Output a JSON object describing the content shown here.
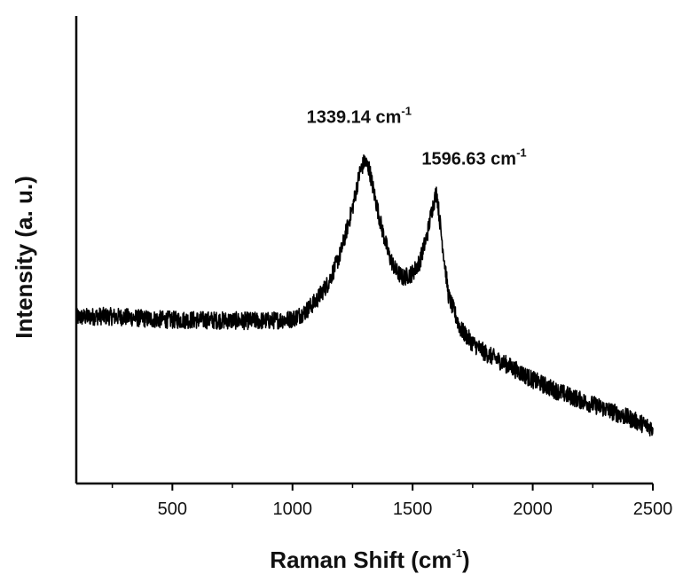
{
  "chart_data": {
    "type": "line",
    "title": "",
    "xlabel": "Raman Shift (cm",
    "xlabel_sup": "-1",
    "xlabel_end": ")",
    "ylabel": "Intensity (a. u.)",
    "xlim": [
      100,
      2500
    ],
    "ylim": [
      0,
      1
    ],
    "x_ticks": [
      500,
      1000,
      1500,
      2000,
      2500
    ],
    "x_tick_labels": [
      "500",
      "1000",
      "1500",
      "2000",
      "2500"
    ],
    "y_tick_labels": [],
    "grid": false,
    "legend": "none",
    "series": [
      {
        "x": [
          100,
          200,
          300,
          400,
          500,
          600,
          700,
          800,
          900,
          1000,
          1050,
          1100,
          1150,
          1200,
          1250,
          1280,
          1300,
          1320,
          1340,
          1370,
          1400,
          1430,
          1460,
          1500,
          1530,
          1560,
          1580,
          1600,
          1620,
          1650,
          1700,
          1750,
          1800,
          1900,
          2000,
          2100,
          2200,
          2300,
          2400,
          2500
        ],
        "y": [
          0.355,
          0.358,
          0.356,
          0.352,
          0.35,
          0.35,
          0.349,
          0.348,
          0.348,
          0.352,
          0.366,
          0.392,
          0.43,
          0.492,
          0.59,
          0.665,
          0.69,
          0.672,
          0.62,
          0.55,
          0.49,
          0.455,
          0.44,
          0.45,
          0.475,
          0.53,
          0.585,
          0.625,
          0.53,
          0.4,
          0.33,
          0.3,
          0.28,
          0.252,
          0.222,
          0.198,
          0.178,
          0.16,
          0.14,
          0.118
        ]
      }
    ],
    "annotations": [
      {
        "text": "1339.14 cm",
        "sup": "-1",
        "x": 1339.14,
        "y": 0.69
      },
      {
        "text": "1596.63 cm",
        "sup": "-1",
        "x": 1596.63,
        "y": 0.625
      }
    ]
  }
}
